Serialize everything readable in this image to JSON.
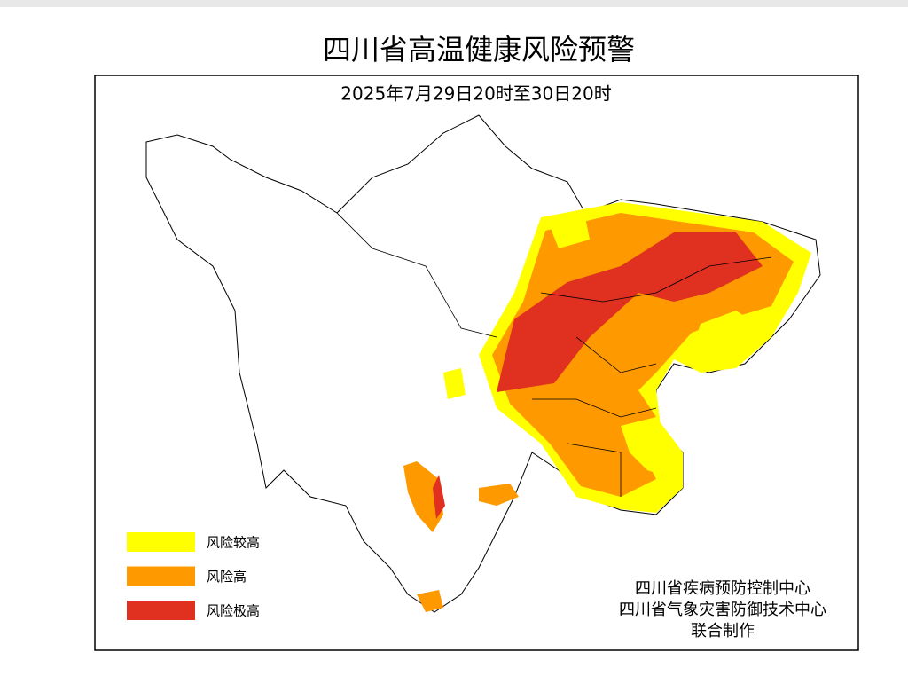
{
  "header": {
    "title": "四川省高温健康风险预警",
    "subtitle": "2025年7月29日20时至30日20时"
  },
  "legend": [
    {
      "label": "风险较高",
      "color": "#ffff00"
    },
    {
      "label": "风险高",
      "color": "#ff9900"
    },
    {
      "label": "风险极高",
      "color": "#e03020"
    }
  ],
  "credits": [
    "四川省疾病预防控制中心",
    "四川省气象灾害防御技术中心",
    "联合制作"
  ]
}
